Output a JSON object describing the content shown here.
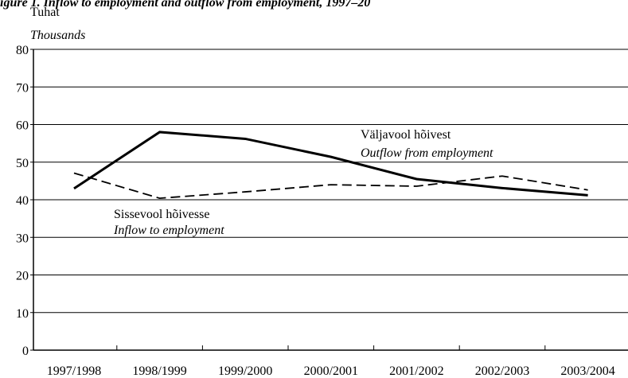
{
  "chart_data": {
    "type": "line",
    "title": "igure 1. Inflow to employment and outflow from employment, 1997–20",
    "y_label": "Tuhat",
    "y_label_en": "Thousands",
    "categories": [
      "1997/1998",
      "1998/1999",
      "1999/2000",
      "2000/2001",
      "2001/2002",
      "2002/2003",
      "2003/2004"
    ],
    "series": [
      {
        "name": "Väljavool hõivest",
        "name_en": "Outflow from employment",
        "color": "#000000",
        "dash": "solid",
        "values": [
          43,
          58,
          56.2,
          51.4,
          45.5,
          43.1,
          41.2
        ]
      },
      {
        "name": "Sissevool hõivesse",
        "name_en": "Inflow to employment",
        "color": "#000000",
        "dash": "dashed",
        "values": [
          47.1,
          40.4,
          42.1,
          44,
          43.6,
          46.3,
          42.6
        ]
      }
    ],
    "ylim": [
      0,
      80
    ],
    "yticks": [
      0,
      10,
      20,
      30,
      40,
      50,
      60,
      70,
      80
    ],
    "grid": true
  }
}
